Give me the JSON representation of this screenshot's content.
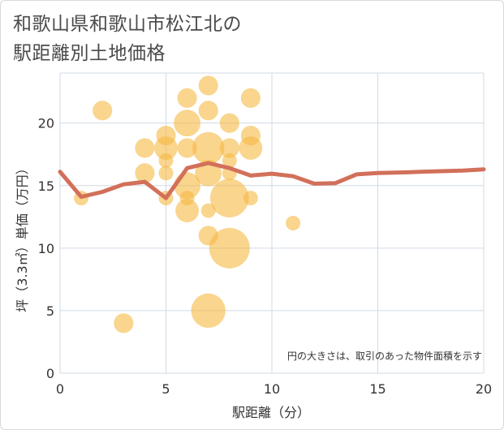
{
  "title_lines": [
    "和歌山県和歌山市松江北の",
    "駅距離別土地価格"
  ],
  "chart_data": {
    "type": "scatter",
    "xlabel": "駅距離（分）",
    "ylabel": "坪（3.3㎡）単価（万円）",
    "xlim": [
      0,
      20
    ],
    "ylim": [
      0,
      24
    ],
    "xticks": [
      0,
      5,
      10,
      15,
      20
    ],
    "yticks": [
      0,
      5,
      10,
      15,
      20
    ],
    "grid": true,
    "note": "円の大きさは、取引のあった物件面積を示す",
    "colors": {
      "bubble": "#f5b942",
      "line": "#d2705a",
      "grid": "#d0dbe6"
    },
    "bubbles": [
      {
        "x": 1,
        "y": 14,
        "size": 1
      },
      {
        "x": 2,
        "y": 21,
        "size": 2
      },
      {
        "x": 3,
        "y": 4,
        "size": 2
      },
      {
        "x": 4,
        "y": 18,
        "size": 2
      },
      {
        "x": 4,
        "y": 16,
        "size": 2
      },
      {
        "x": 5,
        "y": 19,
        "size": 2
      },
      {
        "x": 5,
        "y": 18,
        "size": 3
      },
      {
        "x": 5,
        "y": 17,
        "size": 1
      },
      {
        "x": 5,
        "y": 16,
        "size": 1
      },
      {
        "x": 5,
        "y": 14,
        "size": 1
      },
      {
        "x": 6,
        "y": 22,
        "size": 2
      },
      {
        "x": 6,
        "y": 20,
        "size": 4
      },
      {
        "x": 6,
        "y": 18,
        "size": 2
      },
      {
        "x": 6,
        "y": 15,
        "size": 4
      },
      {
        "x": 6,
        "y": 14,
        "size": 1
      },
      {
        "x": 6,
        "y": 13,
        "size": 3
      },
      {
        "x": 7,
        "y": 23,
        "size": 2
      },
      {
        "x": 7,
        "y": 21,
        "size": 2
      },
      {
        "x": 7,
        "y": 18,
        "size": 6
      },
      {
        "x": 7,
        "y": 16,
        "size": 4
      },
      {
        "x": 7,
        "y": 13,
        "size": 1
      },
      {
        "x": 7,
        "y": 11,
        "size": 2
      },
      {
        "x": 7,
        "y": 5,
        "size": 7
      },
      {
        "x": 8,
        "y": 20,
        "size": 2
      },
      {
        "x": 8,
        "y": 18,
        "size": 2
      },
      {
        "x": 8,
        "y": 17,
        "size": 1
      },
      {
        "x": 8,
        "y": 16,
        "size": 1
      },
      {
        "x": 8,
        "y": 14,
        "size": 9
      },
      {
        "x": 8,
        "y": 10,
        "size": 10
      },
      {
        "x": 9,
        "y": 22,
        "size": 2
      },
      {
        "x": 9,
        "y": 19,
        "size": 2
      },
      {
        "x": 9,
        "y": 18,
        "size": 3
      },
      {
        "x": 9,
        "y": 14,
        "size": 1
      },
      {
        "x": 11,
        "y": 12,
        "size": 1
      }
    ],
    "line": {
      "x": [
        0,
        1,
        2,
        3,
        4,
        5,
        6,
        7,
        8,
        9,
        10,
        11,
        12,
        13,
        14,
        15,
        16,
        17,
        18,
        19,
        20
      ],
      "y": [
        16.1,
        14.1,
        14.5,
        15.1,
        15.3,
        14.0,
        16.4,
        16.8,
        16.4,
        15.8,
        15.95,
        15.75,
        15.15,
        15.2,
        15.9,
        16.0,
        16.05,
        16.1,
        16.15,
        16.2,
        16.3
      ]
    }
  }
}
